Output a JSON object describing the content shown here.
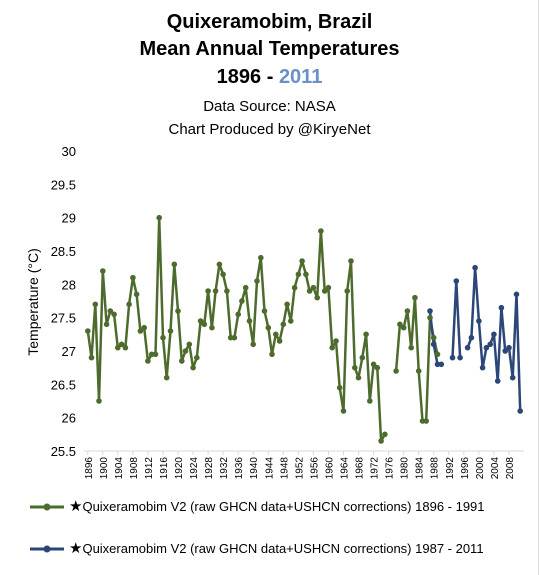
{
  "title_line1": "Quixeramobim, Brazil",
  "title_line2": "Mean Annual Temperatures",
  "title_year_start": "1896",
  "title_year_sep": " - ",
  "title_year_end": "2011",
  "subtitle_source": "Data Source: NASA",
  "subtitle_credit": "Chart Produced by @KiryeNet",
  "legend": [
    {
      "marker": "★",
      "label": "Quixeramobim V2 (raw GHCN data+USHCN corrections) 1896 - 1991",
      "color": "#4e6b2e"
    },
    {
      "marker": "★",
      "label": "Quixeramobim V2 (raw GHCN data+USHCN corrections) 1987 - 2011",
      "color": "#2b4677"
    }
  ],
  "chart_data": {
    "type": "line",
    "title": "Quixeramobim, Brazil Mean Annual Temperatures 1896 - 2011",
    "xlabel": "",
    "ylabel": "Temperature (°C)",
    "ylim": [
      25.5,
      30
    ],
    "yticks": [
      "30",
      "29.5",
      "29",
      "28.5",
      "28",
      "27.5",
      "27",
      "26.5",
      "26",
      "25.5"
    ],
    "xticks": [
      "1896",
      "1900",
      "1904",
      "1908",
      "1912",
      "1916",
      "1920",
      "1924",
      "1928",
      "1932",
      "1936",
      "1940",
      "1944",
      "1948",
      "1952",
      "1956",
      "1960",
      "1964",
      "1968",
      "1972",
      "1976",
      "1980",
      "1984",
      "1988",
      "1992",
      "1996",
      "2000",
      "2004",
      "2008"
    ],
    "grid": false,
    "legend_position": "bottom",
    "series": [
      {
        "name": "Quixeramobim V2 (raw GHCN data+USHCN corrections) 1896 - 1991",
        "color": "#4e6b2e",
        "x": [
          1896,
          1897,
          1898,
          1899,
          1900,
          1901,
          1902,
          1903,
          1904,
          1905,
          1906,
          1907,
          1908,
          1909,
          1910,
          1911,
          1912,
          1913,
          1914,
          1915,
          1916,
          1917,
          1918,
          1919,
          1920,
          1921,
          1922,
          1923,
          1924,
          1925,
          1926,
          1927,
          1928,
          1929,
          1930,
          1931,
          1932,
          1933,
          1934,
          1935,
          1936,
          1937,
          1938,
          1939,
          1940,
          1941,
          1942,
          1943,
          1944,
          1945,
          1946,
          1947,
          1948,
          1949,
          1950,
          1951,
          1952,
          1953,
          1954,
          1955,
          1956,
          1957,
          1958,
          1959,
          1960,
          1961,
          1962,
          1963,
          1964,
          1965,
          1966,
          1967,
          1968,
          1969,
          1970,
          1971,
          1972,
          1973,
          1974,
          1975,
          null,
          1978,
          1979,
          1980,
          1981,
          1982,
          1983,
          1984,
          1985,
          1986,
          1987,
          1988,
          1989
        ],
        "y": [
          27.3,
          26.9,
          27.7,
          26.25,
          28.2,
          27.4,
          27.6,
          27.55,
          27.05,
          27.1,
          27.05,
          27.7,
          28.1,
          27.85,
          27.3,
          27.35,
          26.85,
          26.95,
          26.95,
          29.0,
          27.2,
          26.6,
          27.3,
          28.3,
          27.6,
          26.85,
          27.0,
          27.1,
          26.75,
          26.9,
          27.45,
          27.4,
          27.9,
          27.35,
          27.9,
          28.3,
          28.15,
          27.9,
          27.2,
          27.2,
          27.55,
          27.75,
          27.95,
          27.45,
          27.1,
          28.05,
          28.4,
          27.6,
          27.35,
          26.95,
          27.25,
          27.15,
          27.4,
          27.7,
          27.45,
          27.95,
          28.15,
          28.35,
          28.15,
          27.9,
          27.95,
          27.8,
          28.8,
          27.9,
          27.95,
          27.05,
          27.15,
          26.45,
          26.1,
          27.9,
          28.35,
          26.75,
          26.6,
          26.9,
          27.25,
          26.25,
          26.8,
          26.75,
          25.65,
          25.75,
          null,
          26.7,
          27.4,
          27.35,
          27.6,
          27.05,
          27.8,
          26.7,
          25.95,
          25.95,
          27.5,
          27.2,
          26.95
        ]
      },
      {
        "name": "Quixeramobim V2 (raw GHCN data+USHCN corrections) 1987 - 2011",
        "color": "#2b4677",
        "x": [
          1987,
          1988,
          1989,
          1990,
          null,
          1993,
          1994,
          1995,
          1996,
          1997,
          1998,
          1999,
          2000,
          2001,
          2002,
          2003,
          2004,
          2005,
          2006,
          2007,
          2008,
          2009,
          2010,
          2011
        ],
        "y": [
          27.6,
          27.1,
          26.8,
          26.8,
          null,
          26.9,
          28.05,
          26.9,
          null,
          27.05,
          27.2,
          28.25,
          27.45,
          26.75,
          27.05,
          27.1,
          27.25,
          26.55,
          27.65,
          27.0,
          27.05,
          26.6,
          27.85,
          26.1
        ]
      }
    ]
  }
}
